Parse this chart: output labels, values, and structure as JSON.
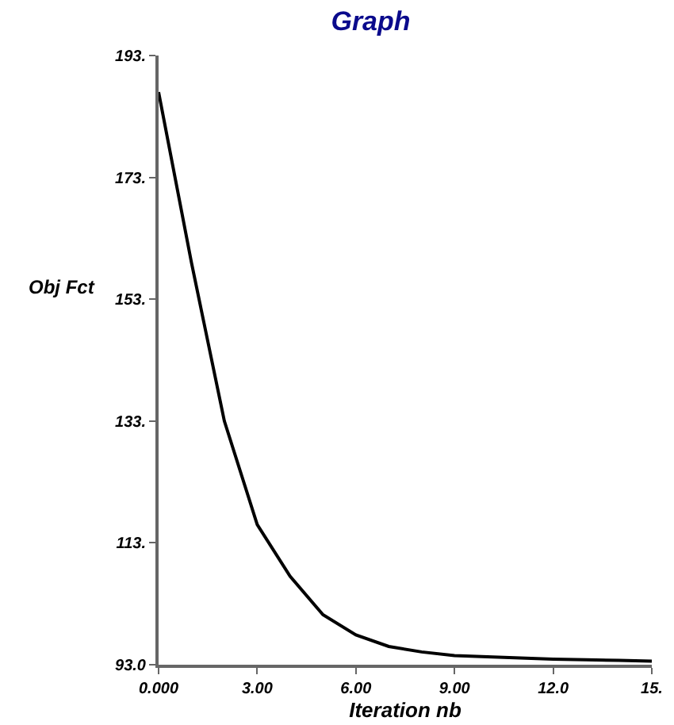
{
  "chart_data": {
    "type": "line",
    "title": "Graph",
    "xlabel": "Iteration nb",
    "ylabel": "Obj Fct",
    "x": [
      0,
      1,
      2,
      3,
      4,
      5,
      6,
      7,
      8,
      9,
      10,
      11,
      12,
      13,
      14,
      15
    ],
    "series": [
      {
        "color": "#000000",
        "values": [
          187,
          159,
          133,
          116,
          107.5,
          101.2,
          97.9,
          96.0,
          95.1,
          94.5,
          94.3,
          94.1,
          93.9,
          93.8,
          93.7,
          93.6
        ]
      }
    ],
    "xlim": [
      0,
      15
    ],
    "xticks": [
      {
        "value": 0,
        "label": "0.000"
      },
      {
        "value": 3,
        "label": "3.00"
      },
      {
        "value": 6,
        "label": "6.00"
      },
      {
        "value": 9,
        "label": "9.00"
      },
      {
        "value": 12,
        "label": "12.0"
      },
      {
        "value": 15,
        "label": "15."
      }
    ],
    "ylim": [
      93,
      193
    ],
    "yticks": [
      {
        "value": 93,
        "label": "93.0"
      },
      {
        "value": 113,
        "label": "113."
      },
      {
        "value": 133,
        "label": "133."
      },
      {
        "value": 153,
        "label": "153."
      },
      {
        "value": 173,
        "label": "173."
      },
      {
        "value": 193,
        "label": "193."
      }
    ],
    "grid": false,
    "marker": "none",
    "line_style": "solid"
  }
}
